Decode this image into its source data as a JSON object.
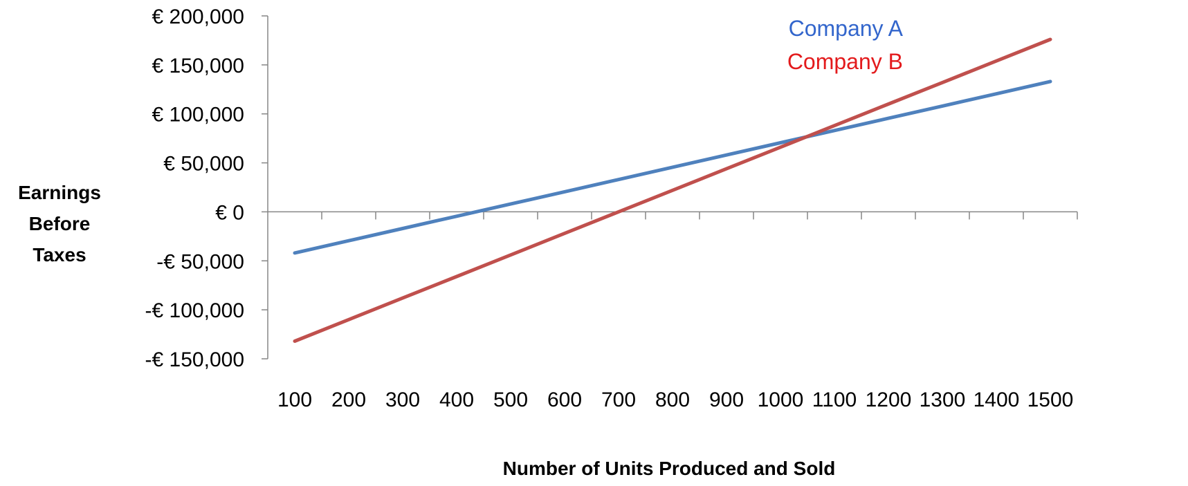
{
  "chart_data": {
    "type": "line",
    "title": "",
    "xlabel": "Number of Units Produced and Sold",
    "ylabel_lines": [
      "Earnings",
      "Before",
      "Taxes"
    ],
    "categories": [
      "100",
      "200",
      "300",
      "400",
      "500",
      "600",
      "700",
      "800",
      "900",
      "1000",
      "1100",
      "1200",
      "1300",
      "1400",
      "1500"
    ],
    "x": [
      100,
      200,
      300,
      400,
      500,
      600,
      700,
      800,
      900,
      1000,
      1100,
      1200,
      1300,
      1400,
      1500
    ],
    "series": [
      {
        "name": "Company A",
        "color": "#4F81BD",
        "label_color": "#3366CC",
        "values": [
          -42000,
          -29500,
          -17000,
          -4500,
          8000,
          20500,
          33000,
          45500,
          58000,
          70500,
          83000,
          95500,
          108000,
          120500,
          133000
        ]
      },
      {
        "name": "Company B",
        "color": "#C0504D",
        "label_color": "#E31A1C",
        "values": [
          -132000,
          -110000,
          -88000,
          -66000,
          -44000,
          -22000,
          0,
          22000,
          44000,
          66000,
          88000,
          110000,
          132000,
          154000,
          176000
        ]
      }
    ],
    "ylim": [
      -150000,
      200000
    ],
    "yticks": [
      {
        "value": 200000,
        "label": "€ 200,000"
      },
      {
        "value": 150000,
        "label": "€ 150,000"
      },
      {
        "value": 100000,
        "label": "€ 100,000"
      },
      {
        "value": 50000,
        "label": "€ 50,000"
      },
      {
        "value": 0,
        "label": "€ 0"
      },
      {
        "value": -50000,
        "label": "-€ 50,000"
      },
      {
        "value": -100000,
        "label": "-€ 100,000"
      },
      {
        "value": -150000,
        "label": "-€ 150,000"
      }
    ],
    "grid": false,
    "legend_position": "top-right"
  }
}
